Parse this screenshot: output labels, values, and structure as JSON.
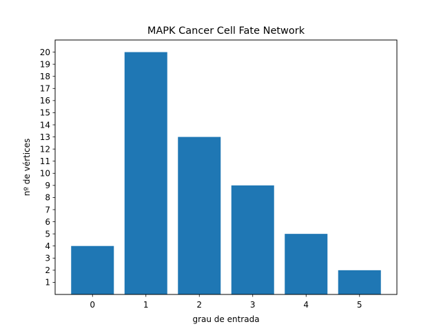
{
  "chart_data": {
    "type": "bar",
    "title": "MAPK Cancer Cell Fate Network",
    "xlabel": "grau de entrada",
    "ylabel": "nº de vértices",
    "categories": [
      "0",
      "1",
      "2",
      "3",
      "4",
      "5"
    ],
    "values": [
      4,
      20,
      13,
      9,
      5,
      2
    ],
    "ylim": [
      0,
      21
    ],
    "yticks": [
      1,
      2,
      3,
      4,
      5,
      6,
      7,
      8,
      9,
      10,
      11,
      12,
      13,
      14,
      15,
      16,
      17,
      18,
      19,
      20
    ],
    "bar_color": "#1f77b4",
    "grid": false,
    "legend": "none"
  }
}
